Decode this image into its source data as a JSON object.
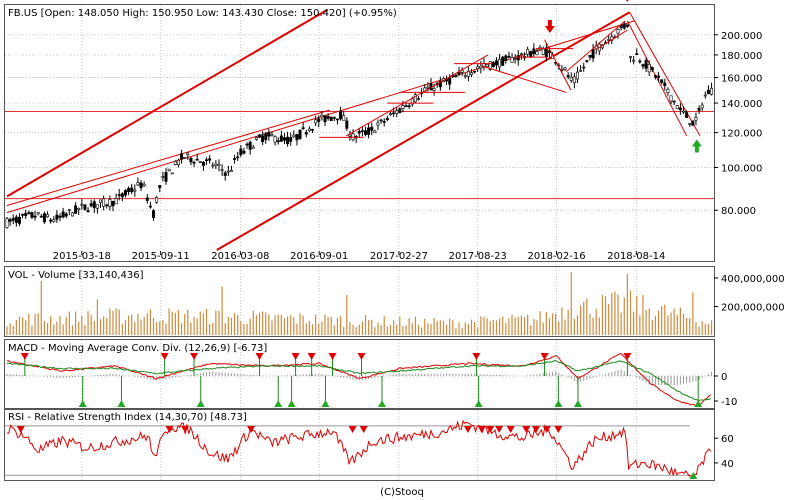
{
  "chart_data": [
    {
      "type": "candlestick",
      "ticker": "FB.US",
      "header": "FB.US [Open: 148.050  High: 150.950  Low: 143.430  Close: 150.420] (+0.95%)",
      "open": 148.05,
      "high": 150.95,
      "low": 143.43,
      "close": 150.42,
      "change_pct": 0.95,
      "y_scale": "log",
      "ylim": [
        65,
        230
      ],
      "y_ticks": [
        80,
        100,
        120,
        140,
        160,
        180,
        200
      ],
      "y_tick_labels": [
        "80.000",
        "100.000",
        "120.000",
        "140.000",
        "160.000",
        "180.000",
        "200.000"
      ],
      "x_ticks": [
        "2015-03-18",
        "2015-09-11",
        "2016-03-08",
        "2016-09-01",
        "2017-02-27",
        "2017-08-23",
        "2018-02-16",
        "2018-08-14"
      ],
      "x_range": [
        "2014-10-01",
        "2019-01-31"
      ],
      "grid": true,
      "price_path": [
        [
          "2014-10-01",
          75
        ],
        [
          "2014-12-01",
          78
        ],
        [
          "2015-01-15",
          76
        ],
        [
          "2015-03-18",
          81
        ],
        [
          "2015-06-01",
          84
        ],
        [
          "2015-08-01",
          92
        ],
        [
          "2015-08-25",
          78
        ],
        [
          "2015-09-11",
          92
        ],
        [
          "2015-11-01",
          106
        ],
        [
          "2016-01-04",
          102
        ],
        [
          "2016-02-10",
          97
        ],
        [
          "2016-03-08",
          108
        ],
        [
          "2016-05-01",
          118
        ],
        [
          "2016-07-01",
          115
        ],
        [
          "2016-09-01",
          128
        ],
        [
          "2016-10-20",
          132
        ],
        [
          "2016-11-15",
          117
        ],
        [
          "2017-01-01",
          122
        ],
        [
          "2017-02-27",
          135
        ],
        [
          "2017-05-01",
          150
        ],
        [
          "2017-08-23",
          168
        ],
        [
          "2017-10-01",
          172
        ],
        [
          "2018-01-15",
          185
        ],
        [
          "2018-02-16",
          176
        ],
        [
          "2018-03-25",
          155
        ],
        [
          "2018-05-15",
          185
        ],
        [
          "2018-07-25",
          212
        ],
        [
          "2018-07-27",
          176
        ],
        [
          "2018-08-14",
          180
        ],
        [
          "2018-10-01",
          160
        ],
        [
          "2018-11-20",
          135
        ],
        [
          "2018-12-24",
          125
        ],
        [
          "2019-01-15",
          145
        ],
        [
          "2019-01-28",
          150
        ]
      ],
      "horizontal_levels": [
        134,
        85
      ],
      "signal_arrows": [
        {
          "date": "2018-02-01",
          "dir": "down"
        },
        {
          "date": "2018-07-25",
          "dir": "down"
        },
        {
          "date": "2018-12-28",
          "dir": "up"
        }
      ],
      "trend_lines": [
        {
          "from": [
            "2014-10-01",
            86
          ],
          "to": [
            "2016-09-20",
            228
          ]
        },
        {
          "from": [
            "2014-10-01",
            82
          ],
          "to": [
            "2016-09-25",
            135
          ]
        },
        {
          "from": [
            "2014-10-01",
            79
          ],
          "to": [
            "2018-08-10",
            215
          ]
        },
        {
          "from": [
            "2016-01-15",
            65
          ],
          "to": [
            "2018-07-30",
            225
          ]
        },
        {
          "from": [
            "2018-07-25",
            215
          ],
          "to": [
            "2018-12-05",
            118
          ]
        },
        {
          "from": [
            "2018-07-30",
            225
          ],
          "to": [
            "2019-01-04",
            118
          ]
        }
      ],
      "overlay_channels": [
        {
          "from": [
            "2016-11-01",
            118
          ],
          "to": [
            "2017-09-15",
            180
          ]
        },
        {
          "from": [
            "2017-09-01",
            170
          ],
          "to": [
            "2018-03-10",
            148
          ]
        },
        {
          "from": [
            "2018-03-10",
            165
          ],
          "to": [
            "2018-07-20",
            215
          ]
        },
        {
          "from": [
            "2018-01-20",
            195
          ],
          "to": [
            "2018-03-20",
            150
          ]
        },
        {
          "from": [
            "2018-05-15",
            185
          ],
          "to": [
            "2018-07-25",
            205
          ]
        }
      ],
      "flat_segments": [
        {
          "from": "2016-09-01",
          "to": "2016-12-10",
          "value": 117
        },
        {
          "from": "2017-02-01",
          "to": "2017-05-15",
          "value": 140
        },
        {
          "from": "2017-03-01",
          "to": "2017-07-25",
          "value": 148
        },
        {
          "from": "2017-07-01",
          "to": "2017-09-25",
          "value": 172
        },
        {
          "from": "2017-11-15",
          "to": "2018-01-25",
          "value": 178
        },
        {
          "from": "2018-01-01",
          "to": "2018-03-25",
          "value": 186
        }
      ]
    },
    {
      "type": "bar",
      "title": "VOL - Volume [33,140,436]",
      "last_volume": 33140436,
      "ylim": [
        0,
        470000000
      ],
      "y_ticks": [
        200000000,
        400000000
      ],
      "y_tick_labels": [
        "200,000,000",
        "400,000,000"
      ],
      "volume_path": [
        [
          "2014-10-01",
          110000000
        ],
        [
          "2015-03-01",
          120000000
        ],
        [
          "2015-08-01",
          140000000
        ],
        [
          "2016-01-01",
          130000000
        ],
        [
          "2016-07-01",
          115000000
        ],
        [
          "2017-01-01",
          95000000
        ],
        [
          "2017-07-01",
          85000000
        ],
        [
          "2018-01-01",
          110000000
        ],
        [
          "2018-03-20",
          190000000
        ],
        [
          "2018-07-27",
          220000000
        ],
        [
          "2018-11-01",
          150000000
        ],
        [
          "2019-01-31",
          80000000
        ]
      ],
      "volume_spikes": [
        [
          "2014-12-20",
          380000000
        ],
        [
          "2015-04-25",
          250000000
        ],
        [
          "2016-01-28",
          340000000
        ],
        [
          "2016-11-03",
          280000000
        ],
        [
          "2018-03-20",
          440000000
        ],
        [
          "2018-07-26",
          430000000
        ],
        [
          "2018-12-20",
          300000000
        ]
      ]
    },
    {
      "type": "line",
      "title": "MACD - Moving Average Conv. Div. (12,26,9) [-6.73]",
      "last_value": -6.73,
      "ylim": [
        -12,
        14
      ],
      "y_ticks": [
        0,
        -10
      ],
      "y_tick_labels": [
        "0",
        "-10"
      ],
      "series": [
        {
          "values": [
            [
              "2014-10-01",
              6
            ],
            [
              "2015-02-01",
              2
            ],
            [
              "2015-06-01",
              4
            ],
            [
              "2015-09-01",
              -1
            ],
            [
              "2016-01-01",
              5
            ],
            [
              "2016-05-01",
              4
            ],
            [
              "2016-09-01",
              5
            ],
            [
              "2016-12-01",
              -1
            ],
            [
              "2017-03-01",
              3
            ],
            [
              "2017-08-01",
              5
            ],
            [
              "2017-12-01",
              4
            ],
            [
              "2018-02-16",
              8
            ],
            [
              "2018-04-05",
              -1
            ],
            [
              "2018-07-10",
              9
            ],
            [
              "2018-09-15",
              -3
            ],
            [
              "2018-11-15",
              -10
            ],
            [
              "2018-12-31",
              -12
            ],
            [
              "2019-01-31",
              -7
            ]
          ]
        },
        {
          "values": [
            [
              "2014-10-01",
              5
            ],
            [
              "2015-02-01",
              3
            ],
            [
              "2015-06-01",
              3
            ],
            [
              "2015-09-01",
              1
            ],
            [
              "2016-01-01",
              3
            ],
            [
              "2016-05-01",
              4
            ],
            [
              "2016-09-01",
              4
            ],
            [
              "2016-12-01",
              1
            ],
            [
              "2017-03-01",
              2
            ],
            [
              "2017-08-01",
              4
            ],
            [
              "2017-12-01",
              4
            ],
            [
              "2018-02-16",
              6
            ],
            [
              "2018-04-05",
              2
            ],
            [
              "2018-07-10",
              6
            ],
            [
              "2018-09-15",
              1
            ],
            [
              "2018-11-15",
              -6
            ],
            [
              "2018-12-31",
              -10
            ],
            [
              "2019-01-31",
              -9
            ]
          ]
        }
      ],
      "signals_down": [
        "2014-11-10",
        "2015-09-20",
        "2015-11-25",
        "2016-04-20",
        "2016-07-10",
        "2016-08-15",
        "2016-10-01",
        "2016-12-05",
        "2017-08-20",
        "2018-01-20",
        "2018-07-25"
      ],
      "signals_up": [
        "2015-03-20",
        "2015-06-15",
        "2015-12-10",
        "2016-06-01",
        "2016-07-01",
        "2016-09-15",
        "2017-01-20",
        "2017-08-25",
        "2018-02-20",
        "2018-04-05",
        "2018-12-31"
      ]
    },
    {
      "type": "line",
      "title": "RSI - Relative Strength Index (14,30,70) [48.73]",
      "last_value": 48.73,
      "ylim": [
        27,
        82
      ],
      "y_ticks": [
        60,
        40
      ],
      "y_tick_labels": [
        "60",
        "40"
      ],
      "reference_lines": [
        70,
        30
      ],
      "rsi_path": [
        [
          "2014-10-01",
          68
        ],
        [
          "2014-11-05",
          63
        ],
        [
          "2014-12-10",
          50
        ],
        [
          "2015-02-01",
          58
        ],
        [
          "2015-04-01",
          52
        ],
        [
          "2015-06-01",
          57
        ],
        [
          "2015-08-15",
          62
        ],
        [
          "2015-08-25",
          44
        ],
        [
          "2015-10-01",
          70
        ],
        [
          "2015-11-15",
          67
        ],
        [
          "2016-01-01",
          48
        ],
        [
          "2016-02-10",
          43
        ],
        [
          "2016-04-01",
          67
        ],
        [
          "2016-05-15",
          56
        ],
        [
          "2016-07-01",
          60
        ],
        [
          "2016-10-01",
          66
        ],
        [
          "2016-11-10",
          40
        ],
        [
          "2017-01-01",
          58
        ],
        [
          "2017-04-01",
          62
        ],
        [
          "2017-06-01",
          65
        ],
        [
          "2017-08-01",
          72
        ],
        [
          "2017-10-01",
          64
        ],
        [
          "2017-12-01",
          60
        ],
        [
          "2018-02-01",
          67
        ],
        [
          "2018-03-25",
          37
        ],
        [
          "2018-05-10",
          58
        ],
        [
          "2018-07-20",
          66
        ],
        [
          "2018-07-27",
          37
        ],
        [
          "2018-09-01",
          40
        ],
        [
          "2018-10-15",
          36
        ],
        [
          "2018-11-20",
          30
        ],
        [
          "2018-12-24",
          29
        ],
        [
          "2019-01-15",
          44
        ],
        [
          "2019-01-31",
          49
        ]
      ],
      "overbought_signals": [
        "2014-11-01",
        "2015-10-01",
        "2015-11-05",
        "2016-04-01",
        "2016-11-15",
        "2016-12-10",
        "2017-08-01",
        "2017-09-01",
        "2017-09-20",
        "2017-10-10",
        "2017-11-05",
        "2017-12-10",
        "2018-01-01",
        "2018-01-25",
        "2018-02-20"
      ],
      "oversold_signals": [
        "2018-12-20"
      ]
    }
  ],
  "footer": {
    "credit": "(C)Stooq"
  }
}
